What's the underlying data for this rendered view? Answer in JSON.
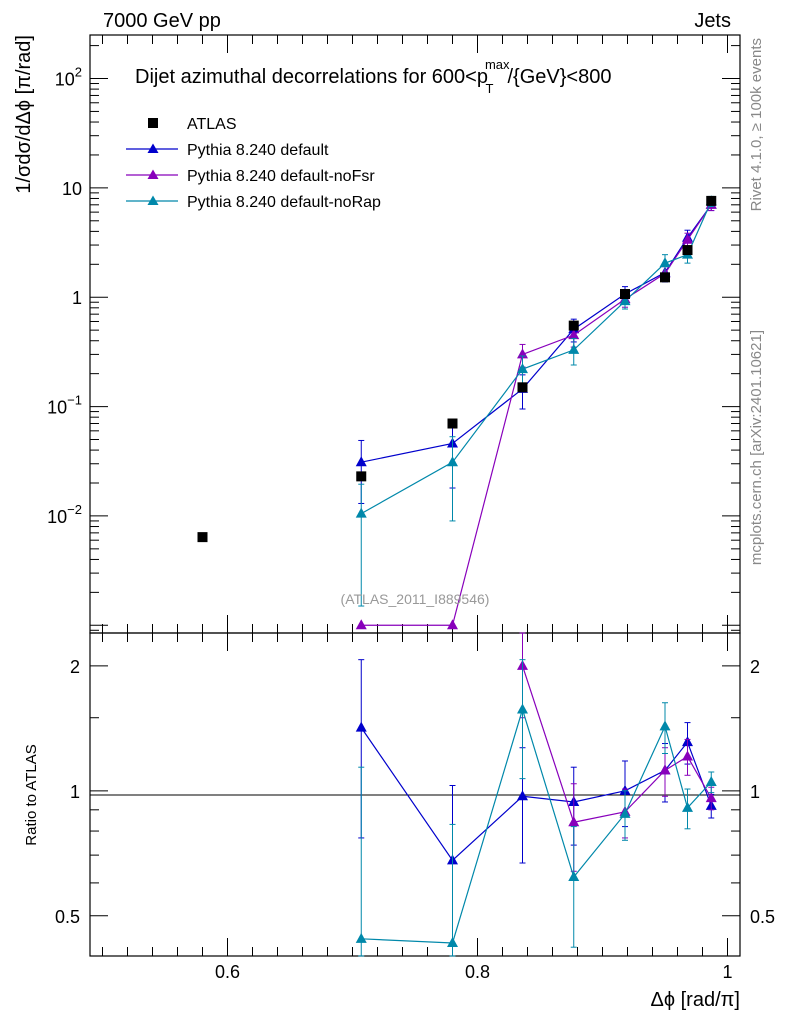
{
  "header": {
    "left": "7000 GeV pp",
    "right": "Jets"
  },
  "side_labels": {
    "rivet": "Rivet 4.1.0, ≥ 100k events",
    "mcplots": "mcplots.cern.ch [arXiv:2401.10621]"
  },
  "chart_data": {
    "type": "scatter",
    "title": "Dijet azimuthal decorrelations for 600<p_T^max/{GeV}<800",
    "title_parts": {
      "pre": "Dijet azimuthal decorrelations for 600<p",
      "sup": "max",
      "sub": "T",
      "post": "/{GeV}<800"
    },
    "analysis_tag": "(ATLAS_2011_I889546)",
    "xlabel": "Δϕ [rad/π]",
    "ylabel": "1/σdσ/dΔϕ [π/rad]",
    "ratio_ylabel": "Ratio to ATLAS",
    "xlim": [
      0.49,
      1.01
    ],
    "ylim": [
      0.00085,
      250
    ],
    "yscale": "log",
    "ratio_ylim": [
      0.4,
      2.4
    ],
    "ratio_yscale": "log",
    "x_ticks": [
      "0.6",
      "0.8",
      "1"
    ],
    "y_ticks": [
      "10^-2",
      "10^-1",
      "1",
      "10",
      "10^2"
    ],
    "ratio_ticks": [
      "0.5",
      "1",
      "2"
    ],
    "legend_position": "top-left",
    "series": [
      {
        "name": "ATLAS",
        "color": "#000000",
        "marker": "square",
        "x": [
          0.58,
          0.707,
          0.78,
          0.836,
          0.877,
          0.918,
          0.95,
          0.968,
          0.987
        ],
        "y": [
          0.0064,
          0.023,
          0.07,
          0.15,
          0.55,
          1.07,
          1.52,
          2.7,
          7.6
        ]
      },
      {
        "name": "Pythia 8.240 default",
        "color": "#0000cc",
        "marker": "triangle",
        "x": [
          0.707,
          0.78,
          0.836,
          0.877,
          0.918,
          0.95,
          0.968,
          0.987
        ],
        "y": [
          0.031,
          0.046,
          0.145,
          0.51,
          1.07,
          1.68,
          3.5,
          7.0
        ],
        "yerr": [
          0.018,
          0.028,
          0.05,
          0.12,
          0.18,
          0.3,
          0.6,
          0.8
        ],
        "ratio": [
          1.42,
          0.68,
          0.97,
          0.94,
          1.0,
          1.12,
          1.31,
          0.92
        ],
        "ratio_err": [
          0.65,
          0.35,
          0.3,
          0.2,
          0.18,
          0.18,
          0.15,
          0.06
        ]
      },
      {
        "name": "Pythia 8.240 default-noFsr",
        "color": "#8800bb",
        "marker": "triangle",
        "x": [
          0.707,
          0.78,
          0.836,
          0.877,
          0.918,
          0.95,
          0.968,
          0.987
        ],
        "y": [
          0.001,
          0.001,
          0.3,
          0.45,
          0.96,
          1.65,
          3.35,
          7.0
        ],
        "yerr": [
          0.0,
          0.0,
          0.07,
          0.1,
          0.15,
          0.25,
          0.5,
          0.8
        ],
        "ratio": [
          0.0,
          0.0,
          2.0,
          0.84,
          0.89,
          1.12,
          1.21,
          0.96
        ],
        "ratio_err": [
          0.0,
          0.0,
          0.5,
          0.2,
          0.12,
          0.15,
          0.12,
          0.06
        ]
      },
      {
        "name": "Pythia 8.240 default-noRap",
        "color": "#0088aa",
        "marker": "triangle",
        "x": [
          0.707,
          0.78,
          0.836,
          0.877,
          0.918,
          0.95,
          0.968,
          0.987
        ],
        "y": [
          0.0105,
          0.031,
          0.22,
          0.33,
          0.92,
          2.05,
          2.45,
          7.55
        ],
        "yerr": [
          0.009,
          0.022,
          0.07,
          0.09,
          0.14,
          0.4,
          0.4,
          0.8
        ],
        "ratio": [
          0.44,
          0.43,
          1.57,
          0.62,
          0.88,
          1.43,
          0.91,
          1.05
        ],
        "ratio_err": [
          0.7,
          0.4,
          0.5,
          0.2,
          0.12,
          0.2,
          0.1,
          0.06
        ]
      }
    ]
  }
}
